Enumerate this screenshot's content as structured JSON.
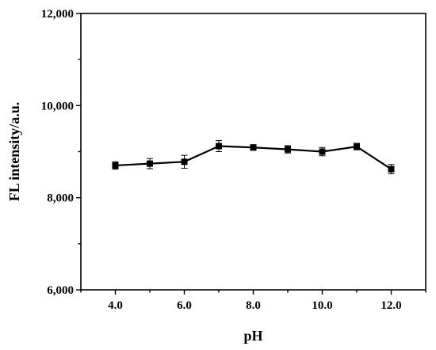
{
  "chart_data": {
    "type": "line",
    "title": "",
    "xlabel": "pH",
    "ylabel": "FL intensity/a.u.",
    "xlim": [
      3.0,
      13.0
    ],
    "ylim": [
      6000,
      12000
    ],
    "x_ticks": [
      4.0,
      6.0,
      8.0,
      10.0,
      12.0
    ],
    "x_tick_labels": [
      "4.0",
      "6.0",
      "8.0",
      "10.0",
      "12.0"
    ],
    "y_ticks": [
      6000,
      8000,
      10000,
      12000
    ],
    "y_tick_labels": [
      "6,000",
      "8,000",
      "10,000",
      "12,000"
    ],
    "grid": false,
    "series": [
      {
        "marker": "square",
        "color": "#000000",
        "x": [
          4,
          5,
          6,
          7,
          8,
          9,
          10,
          11,
          12
        ],
        "y": [
          8700,
          8740,
          8780,
          9120,
          9090,
          9050,
          9000,
          9110,
          8620
        ],
        "error": [
          80,
          110,
          140,
          120,
          60,
          80,
          90,
          70,
          100
        ]
      }
    ]
  }
}
